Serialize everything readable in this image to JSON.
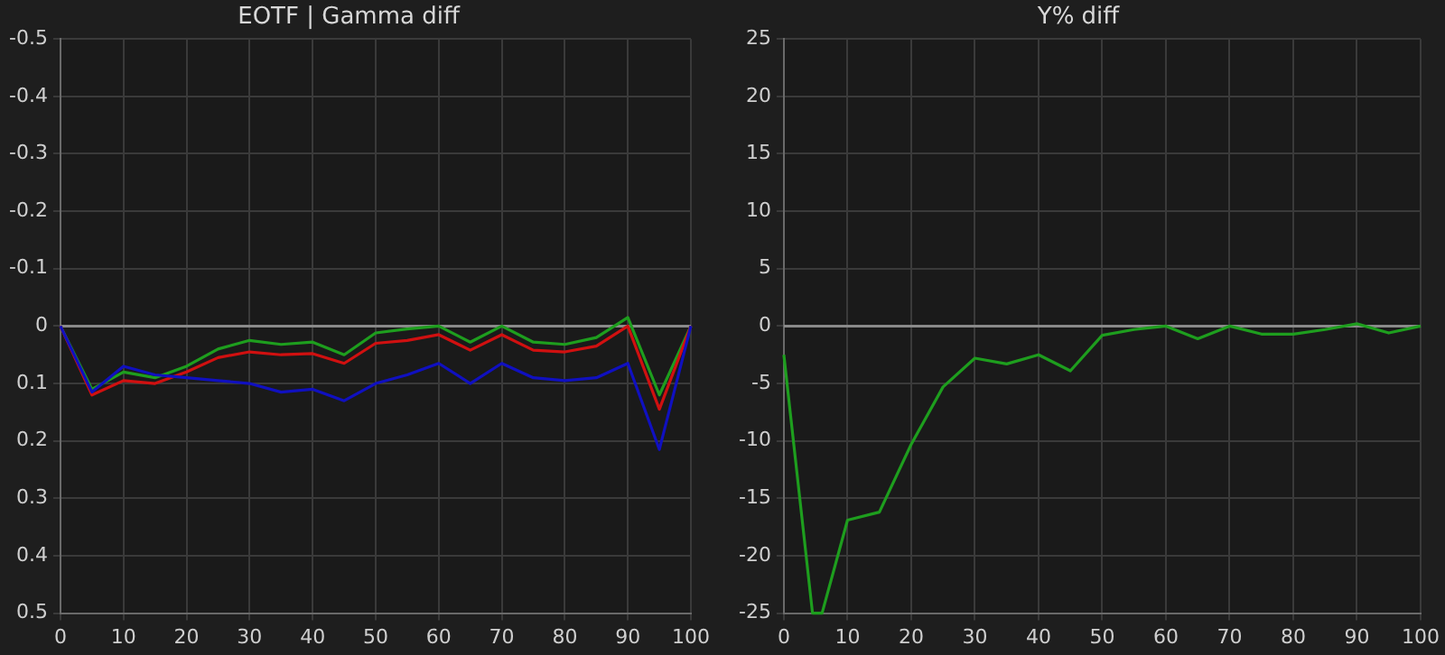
{
  "chart_data": [
    {
      "type": "line",
      "title": "EOTF | Gamma diff",
      "x": [
        0,
        5,
        10,
        15,
        20,
        25,
        30,
        35,
        40,
        45,
        50,
        55,
        60,
        65,
        70,
        75,
        80,
        85,
        90,
        95,
        100
      ],
      "series": [
        {
          "color": "#1010c0",
          "values": [
            0,
            0.115,
            0.07,
            0.085,
            0.09,
            0.095,
            0.1,
            0.115,
            0.11,
            0.13,
            0.1,
            0.085,
            0.065,
            0.1,
            0.065,
            0.09,
            0.095,
            0.09,
            0.065,
            0.215,
            0
          ]
        },
        {
          "color": "#d01010",
          "values": [
            0,
            0.12,
            0.095,
            0.1,
            0.08,
            0.055,
            0.045,
            0.05,
            0.048,
            0.065,
            0.03,
            0.025,
            0.015,
            0.042,
            0.015,
            0.042,
            0.045,
            0.035,
            0,
            0.145,
            0
          ]
        },
        {
          "color": "#1e9e1e",
          "values": [
            0,
            0.11,
            0.08,
            0.09,
            0.07,
            0.04,
            0.025,
            0.032,
            0.028,
            0.05,
            0.012,
            0.005,
            0,
            0.028,
            0,
            0.028,
            0.032,
            0.02,
            -0.015,
            0.12,
            0
          ]
        }
      ],
      "xlim": [
        0,
        100
      ],
      "xticks": [
        0,
        10,
        20,
        30,
        40,
        50,
        60,
        70,
        80,
        90,
        100
      ],
      "ylim": [
        0.5,
        -0.5
      ],
      "yticks": [
        -0.5,
        -0.4,
        -0.3,
        -0.2,
        -0.1,
        0,
        0.1,
        0.2,
        0.3,
        0.4,
        0.5
      ],
      "ref_lines": [
        {
          "axis": "y",
          "value": 0,
          "color": "#8a8a8a"
        }
      ],
      "grid": true,
      "legend": false,
      "marker": "none",
      "line_style": "solid"
    },
    {
      "type": "line",
      "title": "Y% diff",
      "series": [
        {
          "color": "#1e9e1e",
          "x": [
            0,
            4.5,
            6,
            10,
            15,
            20,
            25,
            30,
            35,
            40,
            45,
            50,
            55,
            60,
            65,
            70,
            75,
            80,
            85,
            90,
            95,
            100
          ],
          "values": [
            -2.5,
            -25,
            -25,
            -16.9,
            -16.2,
            -10.3,
            -5.3,
            -2.8,
            -3.3,
            -2.5,
            -3.9,
            -0.8,
            -0.3,
            0,
            -1.1,
            0,
            -0.7,
            -0.7,
            -0.3,
            0.2,
            -0.6,
            0
          ]
        }
      ],
      "xlim": [
        0,
        100
      ],
      "xticks": [
        0,
        10,
        20,
        30,
        40,
        50,
        60,
        70,
        80,
        90,
        100
      ],
      "ylim": [
        -25,
        25
      ],
      "yticks": [
        -25,
        -20,
        -15,
        -10,
        -5,
        0,
        5,
        10,
        15,
        20,
        25
      ],
      "ref_lines": [
        {
          "axis": "y",
          "value": 0,
          "color": "#8a8a8a"
        }
      ],
      "grid": true,
      "legend": false,
      "marker": "none",
      "line_style": "solid"
    }
  ]
}
